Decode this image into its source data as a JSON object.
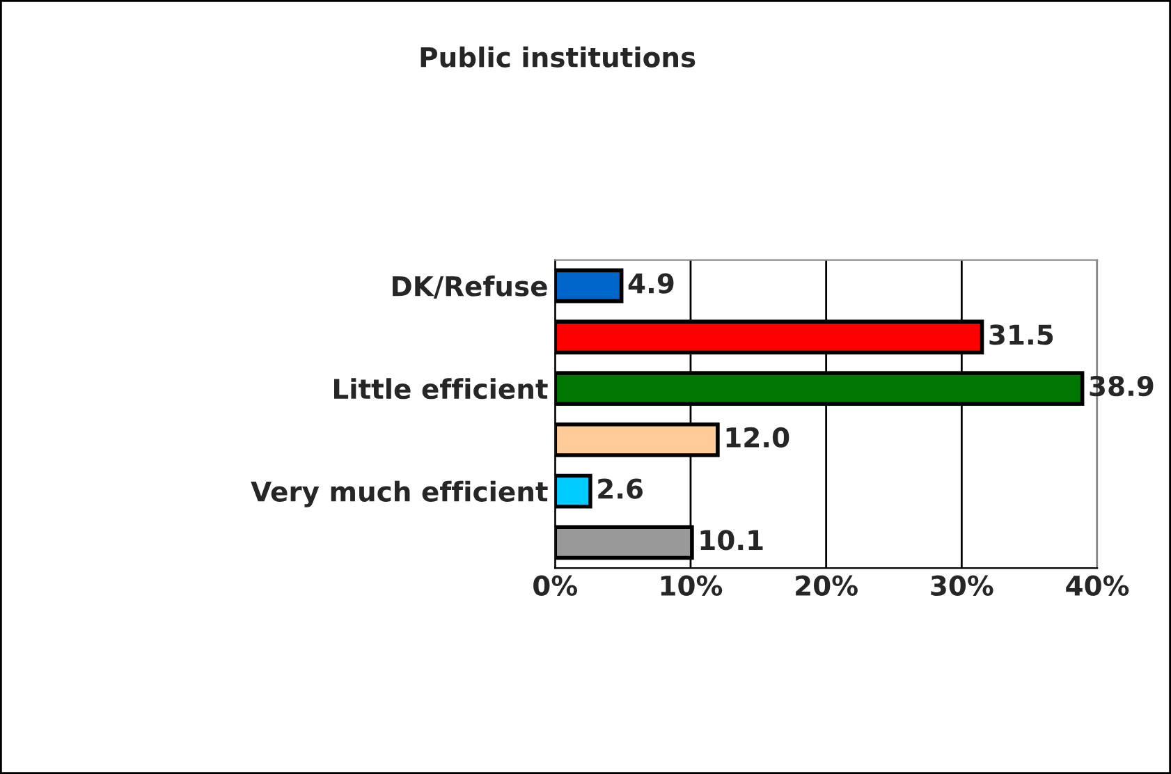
{
  "chart_data": {
    "type": "bar",
    "orientation": "horizontal",
    "title": "Public institutions",
    "categories": [
      "DK/Refuse",
      null,
      "Little efficient",
      null,
      "Very much efficient",
      null
    ],
    "values": [
      4.9,
      31.5,
      38.9,
      12.0,
      2.6,
      10.1
    ],
    "colors": [
      "#0066cc",
      "#ff0000",
      "#007700",
      "#ffcc99",
      "#00ccff",
      "#999999"
    ],
    "value_labels": [
      "4.9",
      "31.5",
      "38.9",
      "12.0",
      "2.6",
      "10.1"
    ],
    "xlim": [
      0,
      40
    ],
    "xticks": [
      {
        "value": 0,
        "label": "0%"
      },
      {
        "value": 10,
        "label": "10%"
      },
      {
        "value": 20,
        "label": "20%"
      },
      {
        "value": 30,
        "label": "30%"
      },
      {
        "value": 40,
        "label": "40%"
      }
    ],
    "grid": "x",
    "legend": false
  }
}
